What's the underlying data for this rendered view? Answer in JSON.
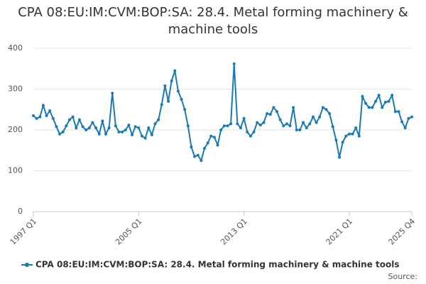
{
  "chart_data": {
    "type": "line",
    "title": "CPA 08:EU:IM:CVM:BOP:SA: 28.4. Metal forming machinery & machine tools",
    "categories": [
      "1997 Q1",
      null,
      null,
      null,
      null,
      null,
      null,
      null,
      null,
      null,
      null,
      null,
      null,
      null,
      null,
      null,
      null,
      null,
      null,
      null,
      null,
      null,
      null,
      null,
      null,
      null,
      null,
      null,
      null,
      null,
      null,
      null,
      "2005 Q1",
      null,
      null,
      null,
      null,
      null,
      null,
      null,
      null,
      null,
      null,
      null,
      null,
      null,
      null,
      null,
      null,
      null,
      null,
      null,
      null,
      null,
      null,
      null,
      null,
      null,
      null,
      null,
      null,
      null,
      null,
      null,
      "2013 Q1",
      null,
      null,
      null,
      null,
      null,
      null,
      null,
      null,
      null,
      null,
      null,
      null,
      null,
      null,
      null,
      null,
      null,
      null,
      null,
      null,
      null,
      null,
      null,
      null,
      null,
      null,
      null,
      null,
      null,
      null,
      null,
      "2021 Q1",
      null,
      null,
      null,
      null,
      null,
      null,
      null,
      null,
      null,
      null,
      null,
      null,
      null,
      null,
      null,
      null,
      null,
      null,
      "2025 Q4"
    ],
    "series": [
      {
        "name": "CPA 08:EU:IM:CVM:BOP:SA: 28.4. Metal forming machinery & machine tools",
        "color": "#1a7ab5",
        "values": [
          235,
          228,
          232,
          260,
          235,
          247,
          228,
          208,
          190,
          195,
          210,
          225,
          232,
          205,
          225,
          208,
          200,
          205,
          218,
          205,
          190,
          222,
          190,
          205,
          290,
          210,
          195,
          195,
          200,
          212,
          188,
          208,
          205,
          185,
          180,
          205,
          188,
          215,
          225,
          262,
          308,
          270,
          320,
          345,
          295,
          275,
          250,
          210,
          158,
          135,
          138,
          125,
          155,
          168,
          185,
          182,
          163,
          200,
          210,
          210,
          215,
          362,
          215,
          205,
          228,
          195,
          185,
          195,
          218,
          212,
          218,
          240,
          238,
          255,
          245,
          225,
          210,
          215,
          210,
          255,
          200,
          200,
          218,
          205,
          215,
          232,
          218,
          232,
          255,
          250,
          240,
          208,
          175,
          133,
          170,
          185,
          190,
          190,
          205,
          185,
          282,
          265,
          255,
          255,
          270,
          285,
          255,
          268,
          270,
          285,
          245,
          245,
          220,
          205,
          228,
          232
        ]
      }
    ],
    "ylim": [
      0,
      400
    ],
    "yticks": [
      0,
      100,
      200,
      300,
      400
    ],
    "grid": true,
    "legend": "bottom",
    "source": "Source:"
  }
}
